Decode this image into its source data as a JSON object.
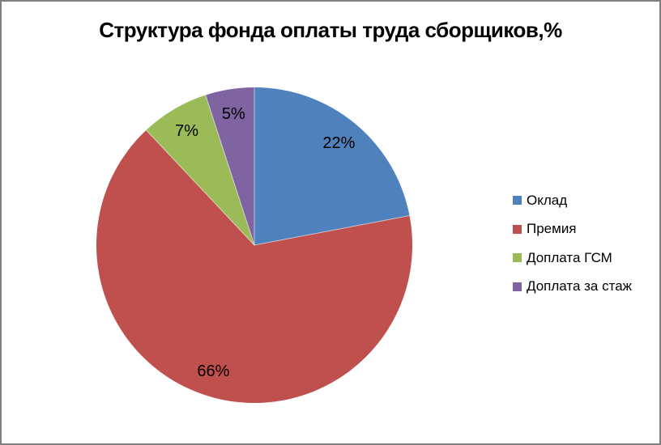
{
  "frame": {
    "background": "#ffffff",
    "border_color": "#808080"
  },
  "chart_data": {
    "type": "pie",
    "title": "Структура фонда оплаты труда сборщиков,%",
    "categories": [
      "Оклад",
      "Премия",
      "Доплата ГСМ",
      "Доплата за стаж"
    ],
    "values": [
      22,
      66,
      7,
      5
    ],
    "data_labels": [
      "22%",
      "66%",
      "7%",
      "5%"
    ],
    "colors": [
      "#4F81BD",
      "#C0504D",
      "#9BBB59",
      "#8064A2"
    ],
    "legend_position": "right",
    "start_angle_deg": 0,
    "direction": "clockwise",
    "title_color": "#000000",
    "data_label_color": "#000000"
  }
}
